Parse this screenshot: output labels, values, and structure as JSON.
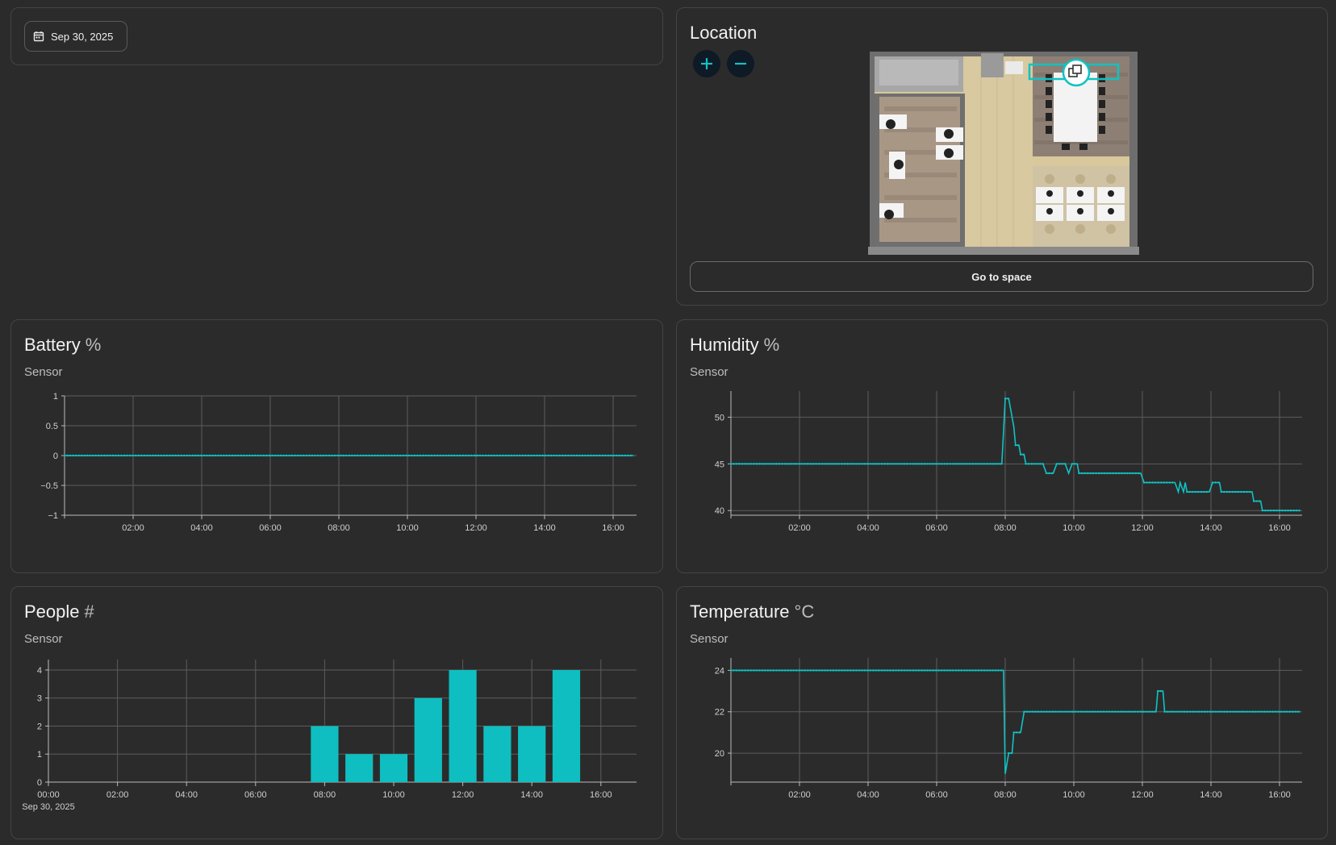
{
  "date_picker": {
    "label": "Sep 30, 2025",
    "icon": "calendar-icon"
  },
  "location": {
    "title": "Location",
    "zoom_in_icon": "plus-icon",
    "zoom_out_icon": "minus-icon",
    "go_button": "Go to space",
    "accent": "#11c2c4"
  },
  "charts": {
    "battery": {
      "title": "Battery",
      "unit": "%",
      "subtitle": "Sensor",
      "chart_data": {
        "type": "line",
        "x_ticks": [
          "02:00",
          "04:00",
          "06:00",
          "08:00",
          "10:00",
          "12:00",
          "14:00",
          "16:00"
        ],
        "y_ticks": [
          "1",
          "0.5",
          "0",
          "−0.5",
          "−1"
        ],
        "ylim": [
          -1,
          1
        ],
        "series": [
          {
            "points": [
              [
                0,
                0
              ],
              [
                16.6,
                0
              ]
            ]
          }
        ],
        "grid": true,
        "color": "#11c2c4"
      }
    },
    "humidity": {
      "title": "Humidity",
      "unit": "%",
      "subtitle": "Sensor",
      "chart_data": {
        "type": "line",
        "x_ticks": [
          "02:00",
          "04:00",
          "06:00",
          "08:00",
          "10:00",
          "12:00",
          "14:00",
          "16:00"
        ],
        "y_ticks": [
          "50",
          "45",
          "40"
        ],
        "ylim": [
          39.5,
          52.8
        ],
        "series": [
          {
            "points": [
              [
                0,
                45
              ],
              [
                7.9,
                45
              ],
              [
                8.0,
                52
              ],
              [
                8.1,
                52
              ],
              [
                8.2,
                50
              ],
              [
                8.25,
                49
              ],
              [
                8.3,
                47
              ],
              [
                8.4,
                47
              ],
              [
                8.45,
                46
              ],
              [
                8.55,
                46
              ],
              [
                8.6,
                45
              ],
              [
                9.1,
                45
              ],
              [
                9.2,
                44
              ],
              [
                9.4,
                44
              ],
              [
                9.5,
                45
              ],
              [
                9.75,
                45
              ],
              [
                9.85,
                44
              ],
              [
                9.95,
                45
              ],
              [
                10.1,
                45
              ],
              [
                10.15,
                44
              ],
              [
                11.95,
                44
              ],
              [
                12.05,
                43
              ],
              [
                12.95,
                43
              ],
              [
                13.05,
                42
              ],
              [
                13.1,
                43
              ],
              [
                13.2,
                42
              ],
              [
                13.25,
                43
              ],
              [
                13.3,
                42
              ],
              [
                13.95,
                42
              ],
              [
                14.05,
                43
              ],
              [
                14.25,
                43
              ],
              [
                14.3,
                42
              ],
              [
                15.2,
                42
              ],
              [
                15.25,
                41
              ],
              [
                15.45,
                41
              ],
              [
                15.5,
                40
              ],
              [
                16.6,
                40
              ]
            ]
          }
        ],
        "grid": true,
        "color": "#11c2c4"
      }
    },
    "people": {
      "title": "People",
      "unit": "#",
      "subtitle": "Sensor",
      "chart_data": {
        "type": "bar",
        "x_ticks": [
          "00:00",
          "02:00",
          "04:00",
          "06:00",
          "08:00",
          "10:00",
          "12:00",
          "14:00",
          "16:00"
        ],
        "x_sub_label": "Sep 30, 2025",
        "y_ticks": [
          "4",
          "3",
          "2",
          "1",
          "0"
        ],
        "ylim": [
          0,
          4.2
        ],
        "bars": [
          {
            "x": "08:00",
            "value": 2
          },
          {
            "x": "09:00",
            "value": 1
          },
          {
            "x": "10:00",
            "value": 1
          },
          {
            "x": "11:00",
            "value": 3
          },
          {
            "x": "12:00",
            "value": 4
          },
          {
            "x": "13:00",
            "value": 2
          },
          {
            "x": "14:00",
            "value": 2
          },
          {
            "x": "15:00",
            "value": 4
          }
        ],
        "grid": true,
        "color": "#0fbec0"
      }
    },
    "temperature": {
      "title": "Temperature",
      "unit": "°C",
      "subtitle": "Sensor",
      "chart_data": {
        "type": "line",
        "x_ticks": [
          "02:00",
          "04:00",
          "06:00",
          "08:00",
          "10:00",
          "12:00",
          "14:00",
          "16:00"
        ],
        "y_ticks": [
          "24",
          "22",
          "20"
        ],
        "ylim": [
          18.6,
          24.6
        ],
        "series": [
          {
            "points": [
              [
                0,
                24
              ],
              [
                7.95,
                24
              ],
              [
                8.0,
                19
              ],
              [
                8.1,
                20
              ],
              [
                8.2,
                20
              ],
              [
                8.25,
                21
              ],
              [
                8.45,
                21
              ],
              [
                8.55,
                22
              ],
              [
                12.4,
                22
              ],
              [
                12.45,
                23
              ],
              [
                12.6,
                23
              ],
              [
                12.65,
                22
              ],
              [
                16.6,
                22
              ]
            ]
          }
        ],
        "grid": true,
        "color": "#11c2c4"
      }
    }
  }
}
